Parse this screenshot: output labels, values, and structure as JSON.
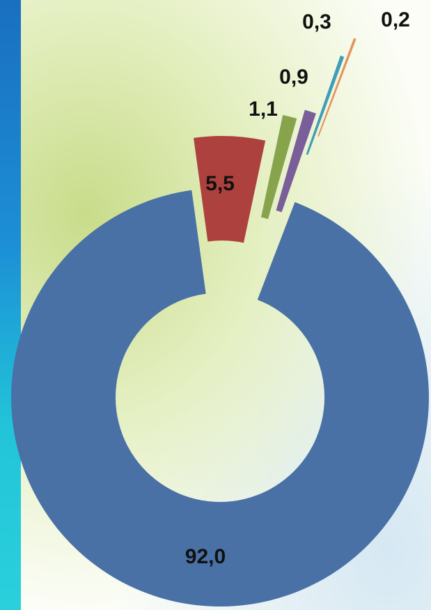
{
  "chart_data": {
    "type": "donut",
    "values": [
      92.0,
      5.5,
      1.1,
      0.9,
      0.3,
      0.2
    ],
    "value_labels": [
      "92,0",
      "5,5",
      "1,1",
      "0,9",
      "0,3",
      "0,2"
    ],
    "colors": [
      "#4a71a6",
      "#ad413e",
      "#87a44d",
      "#7a5e9a",
      "#3f9db5",
      "#e5935c"
    ]
  }
}
